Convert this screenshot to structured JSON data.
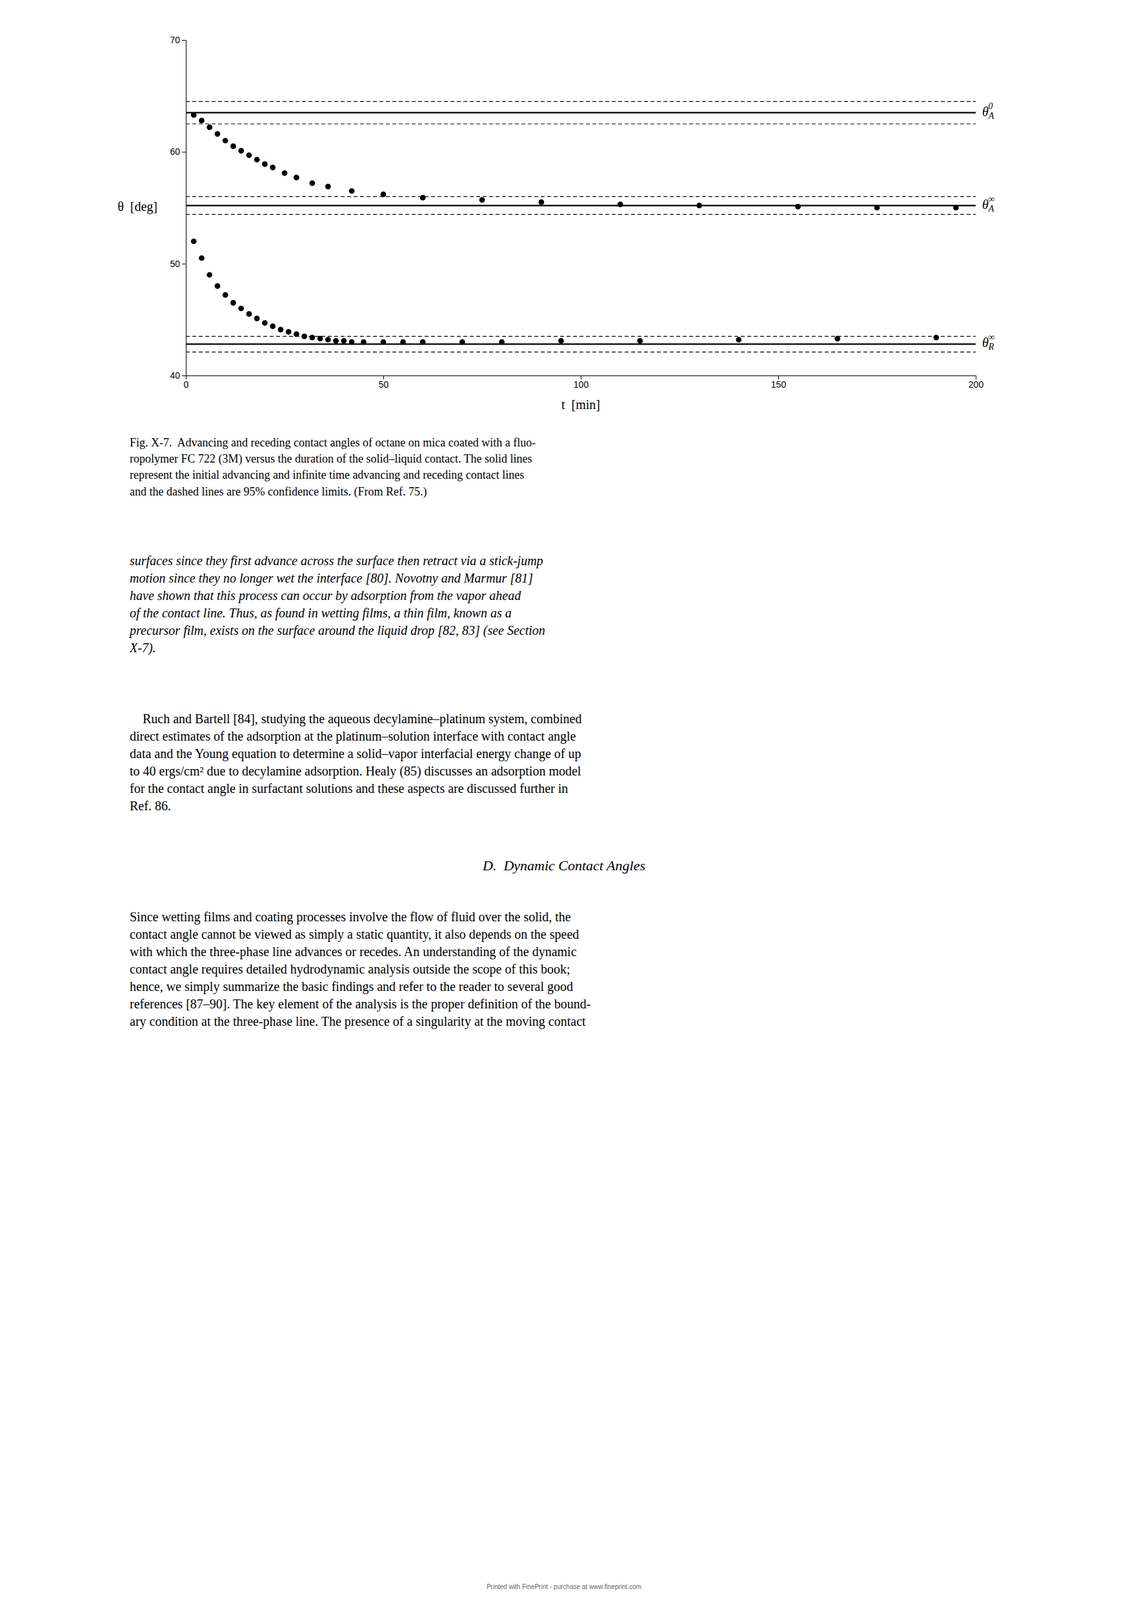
{
  "chart_data": {
    "type": "scatter",
    "xlabel": "t  [min]",
    "ylabel": "θ  [deg]",
    "xlim": [
      0,
      200
    ],
    "ylim": [
      40,
      70
    ],
    "xticks": [
      0,
      50,
      100,
      150,
      200
    ],
    "yticks": [
      40,
      50,
      60,
      70
    ],
    "color": "#000000",
    "series": [
      {
        "color": "#000000",
        "marker": "circle",
        "x": [
          2,
          4,
          6,
          8,
          10,
          12,
          14,
          16,
          18,
          20,
          22,
          25,
          28,
          32,
          36,
          42,
          50,
          60,
          75,
          90,
          110,
          130,
          155,
          175,
          195
        ],
        "values": [
          63.3,
          62.8,
          62.2,
          61.6,
          61.0,
          60.5,
          60.1,
          59.7,
          59.3,
          58.9,
          58.6,
          58.1,
          57.7,
          57.2,
          56.9,
          56.5,
          56.2,
          55.9,
          55.7,
          55.5,
          55.3,
          55.2,
          55.1,
          55.0,
          55.0
        ]
      },
      {
        "color": "#000000",
        "marker": "circle",
        "x": [
          2,
          4,
          6,
          8,
          10,
          12,
          14,
          16,
          18,
          20,
          22,
          24,
          26,
          28,
          30,
          32,
          34,
          36,
          38,
          40,
          42,
          45,
          50,
          55,
          60,
          70,
          80,
          95,
          115,
          140,
          165,
          190
        ],
        "values": [
          52.0,
          50.5,
          49.0,
          48.0,
          47.2,
          46.5,
          46.0,
          45.5,
          45.1,
          44.7,
          44.4,
          44.1,
          43.9,
          43.7,
          43.5,
          43.4,
          43.3,
          43.2,
          43.1,
          43.1,
          43.0,
          43.0,
          43.0,
          43.0,
          43.0,
          43.0,
          43.0,
          43.1,
          43.1,
          43.2,
          43.3,
          43.4
        ]
      }
    ],
    "reference_lines": [
      {
        "value": 63.5,
        "line_style": "solid",
        "label": "θ",
        "sub": "A",
        "sup": "0"
      },
      {
        "value": 64.5,
        "line_style": "dashed"
      },
      {
        "value": 62.5,
        "line_style": "dashed"
      },
      {
        "value": 55.2,
        "line_style": "solid",
        "label": "θ",
        "sub": "A",
        "sup": "∞"
      },
      {
        "value": 56.0,
        "line_style": "dashed"
      },
      {
        "value": 54.4,
        "line_style": "dashed"
      },
      {
        "value": 42.8,
        "line_style": "solid",
        "label": "θ",
        "sub": "R",
        "sup": "∞"
      },
      {
        "value": 43.5,
        "line_style": "dashed"
      },
      {
        "value": 42.1,
        "line_style": "dashed"
      }
    ]
  },
  "caption_lines": [
    "Fig. X-7.  Advancing and receding contact angles of octane on mica coated with a fluo-",
    "ropolymer FC 722 (3M) versus the duration of the solid–liquid contact. The solid lines",
    "represent the initial advancing and infinite time advancing and receding contact lines",
    "and the dashed lines are 95% confidence limits. (From Ref. 75.)"
  ],
  "text_block1_lines": [
    "surfaces since they first advance across the surface then retract via a stick-jump",
    "motion since they no longer wet the interface [80]. Novotny and Marmur [81]",
    "have shown that this process can occur by adsorption from the vapor ahead",
    "of the contact line. Thus, as found in wetting films, a thin film, known as a",
    "precursor film, exists on the surface around the liquid drop [82, 83] (see Section",
    "X-7)."
  ],
  "text_block2_lines": [
    "    Ruch and Bartell [84], studying the aqueous decylamine–platinum system, combined",
    "direct estimates of the adsorption at the platinum–solution interface with contact angle",
    "data and the Young equation to determine a solid–vapor interfacial energy change of up",
    "to 40 ergs/cm² due to decylamine adsorption. Healy (85) discusses an adsorption model",
    "for the contact angle in surfactant solutions and these aspects are discussed further in",
    "Ref. 86."
  ],
  "section_title": "D.  Dynamic Contact Angles",
  "text_block3_lines": [
    "Since wetting films and coating processes involve the flow of fluid over the solid, the",
    "contact angle cannot be viewed as simply a static quantity, it also depends on the speed",
    "with which the three-phase line advances or recedes. An understanding of the dynamic",
    "contact angle requires detailed hydrodynamic analysis outside the scope of this book;",
    "hence, we simply summarize the basic findings and refer to the reader to several good",
    "references [87–90]. The key element of the analysis is the proper definition of the bound-",
    "ary condition at the three-phase line. The presence of a singularity at the moving contact"
  ],
  "watermark": "Printed with FinePrint - purchase at www.fineprint.com"
}
